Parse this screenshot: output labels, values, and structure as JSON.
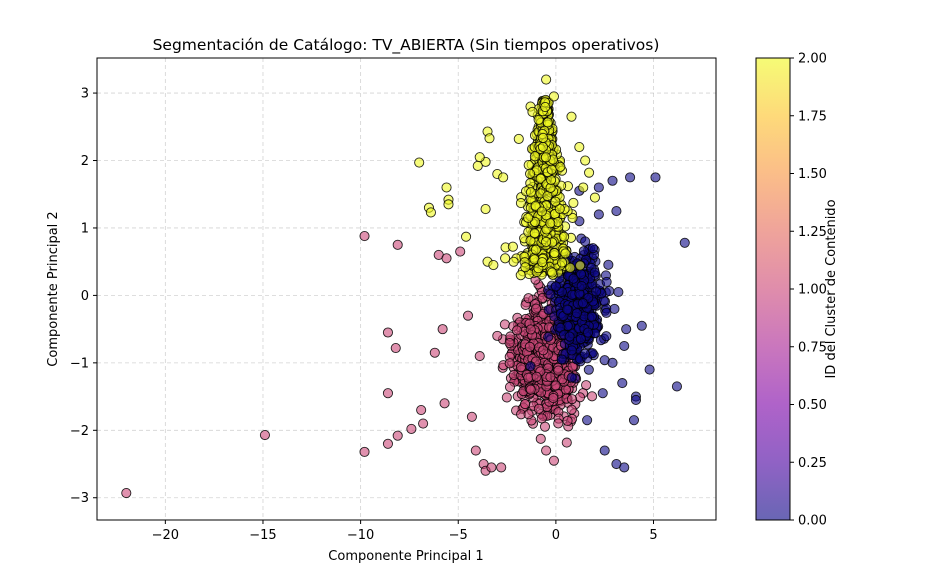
{
  "chart_data": {
    "type": "scatter",
    "title": "Segmentación de Catálogo: TV_ABIERTA (Sin tiempos operativos)",
    "xlabel": "Componente Principal 1",
    "ylabel": "Componente Principal 2",
    "xlim": [
      -23.5,
      8.2
    ],
    "ylim": [
      -3.33,
      3.52
    ],
    "xticks": [
      -20,
      -15,
      -10,
      -5,
      0,
      5
    ],
    "xtick_labels": [
      "−20",
      "−15",
      "−10",
      "−5",
      "0",
      "5"
    ],
    "yticks": [
      -3,
      -2,
      -1,
      0,
      1,
      2,
      3
    ],
    "ytick_labels": [
      "−3",
      "−2",
      "−1",
      "0",
      "1",
      "2",
      "3"
    ],
    "grid": true,
    "colormap": "plasma",
    "colorbar": {
      "label": "ID del Cluster de Contenido",
      "range": [
        0,
        2
      ],
      "ticks": [
        0,
        0.25,
        0.5,
        0.75,
        1.0,
        1.25,
        1.5,
        1.75,
        2.0
      ],
      "tick_labels": [
        "0.00",
        "0.25",
        "0.50",
        "0.75",
        "1.00",
        "1.25",
        "1.50",
        "1.75",
        "2.00"
      ]
    },
    "series": [
      {
        "cluster": 0,
        "color": "#0d0887",
        "approx_count": 500,
        "outliers": [
          [
            1.5,
            0.8
          ],
          [
            2.2,
            1.6
          ],
          [
            2.9,
            1.7
          ],
          [
            3.8,
            1.75
          ],
          [
            5.1,
            1.75
          ],
          [
            3.1,
            1.25
          ],
          [
            6.6,
            0.78
          ],
          [
            3.2,
            0.05
          ],
          [
            3.6,
            -0.5
          ],
          [
            4.4,
            -0.45
          ],
          [
            3.5,
            -0.75
          ],
          [
            4.8,
            -1.1
          ],
          [
            3.4,
            -1.3
          ],
          [
            6.2,
            -1.35
          ],
          [
            4.1,
            -1.5
          ],
          [
            4.1,
            -1.55
          ],
          [
            4.0,
            -1.85
          ],
          [
            2.5,
            -2.3
          ],
          [
            3.1,
            -2.5
          ],
          [
            3.5,
            -2.55
          ],
          [
            1.6,
            -1.85
          ],
          [
            2.4,
            -1.45
          ],
          [
            2.9,
            -1.0
          ],
          [
            2.2,
            1.2
          ],
          [
            1.2,
            1.55
          ],
          [
            0.3,
            -0.95
          ],
          [
            -1.3,
            -1.05
          ],
          [
            1.9,
            0.7
          ],
          [
            2.6,
            0.2
          ],
          [
            3.0,
            -0.2
          ]
        ],
        "region": {
          "x": [
            -0.8,
            3.0
          ],
          "y": [
            -1.6,
            1.2
          ]
        }
      },
      {
        "cluster": 1,
        "color": "#cc4778",
        "approx_count": 800,
        "outliers": [
          [
            -22.0,
            -2.93
          ],
          [
            -14.9,
            -2.07
          ],
          [
            -9.8,
            -2.32
          ],
          [
            -8.6,
            -2.2
          ],
          [
            -8.1,
            -2.08
          ],
          [
            -8.6,
            -1.45
          ],
          [
            -8.6,
            -0.55
          ],
          [
            -8.2,
            -0.78
          ],
          [
            -9.8,
            0.88
          ],
          [
            -8.1,
            0.75
          ],
          [
            -7.4,
            -1.98
          ],
          [
            -6.9,
            -1.7
          ],
          [
            -6.8,
            -1.9
          ],
          [
            -6.0,
            0.6
          ],
          [
            -5.6,
            0.55
          ],
          [
            -4.9,
            0.65
          ],
          [
            -4.3,
            -1.8
          ],
          [
            -4.1,
            -2.3
          ],
          [
            -3.7,
            -2.5
          ],
          [
            -3.6,
            -2.6
          ],
          [
            -3.3,
            -2.55
          ],
          [
            -2.8,
            -2.55
          ],
          [
            -0.5,
            -2.3
          ],
          [
            -0.1,
            -2.45
          ],
          [
            -5.8,
            -0.5
          ],
          [
            -6.2,
            -0.85
          ],
          [
            -5.7,
            -1.6
          ],
          [
            -3.9,
            -0.9
          ],
          [
            -4.5,
            -0.3
          ],
          [
            -3.0,
            -0.6
          ]
        ],
        "region": {
          "x": [
            -4.0,
            2.2
          ],
          "y": [
            -2.2,
            0.5
          ]
        }
      },
      {
        "cluster": 2,
        "color": "#f0f921",
        "approx_count": 700,
        "outliers": [
          [
            -0.5,
            3.2
          ],
          [
            -7.0,
            1.97
          ],
          [
            -6.5,
            1.3
          ],
          [
            -6.4,
            1.23
          ],
          [
            -5.6,
            1.6
          ],
          [
            -5.5,
            1.42
          ],
          [
            -5.5,
            1.35
          ],
          [
            -4.6,
            0.87
          ],
          [
            -3.5,
            2.43
          ],
          [
            -3.4,
            2.33
          ],
          [
            -3.6,
            1.98
          ],
          [
            -3.9,
            2.05
          ],
          [
            -4.0,
            1.92
          ],
          [
            -3.6,
            1.28
          ],
          [
            -3.5,
            0.5
          ],
          [
            -3.0,
            1.8
          ],
          [
            -2.7,
            1.75
          ],
          [
            -1.9,
            2.32
          ],
          [
            -1.3,
            2.8
          ],
          [
            -1.2,
            2.72
          ],
          [
            0.8,
            2.65
          ],
          [
            1.2,
            2.2
          ],
          [
            1.5,
            2.0
          ],
          [
            1.7,
            1.82
          ],
          [
            1.4,
            1.6
          ],
          [
            2.0,
            1.45
          ],
          [
            -1.8,
            0.3
          ],
          [
            -2.6,
            0.55
          ],
          [
            -3.2,
            0.45
          ],
          [
            -0.1,
            2.95
          ]
        ],
        "region": {
          "x": [
            -2.8,
            1.8
          ],
          "y": [
            0.2,
            3.0
          ]
        }
      }
    ]
  }
}
